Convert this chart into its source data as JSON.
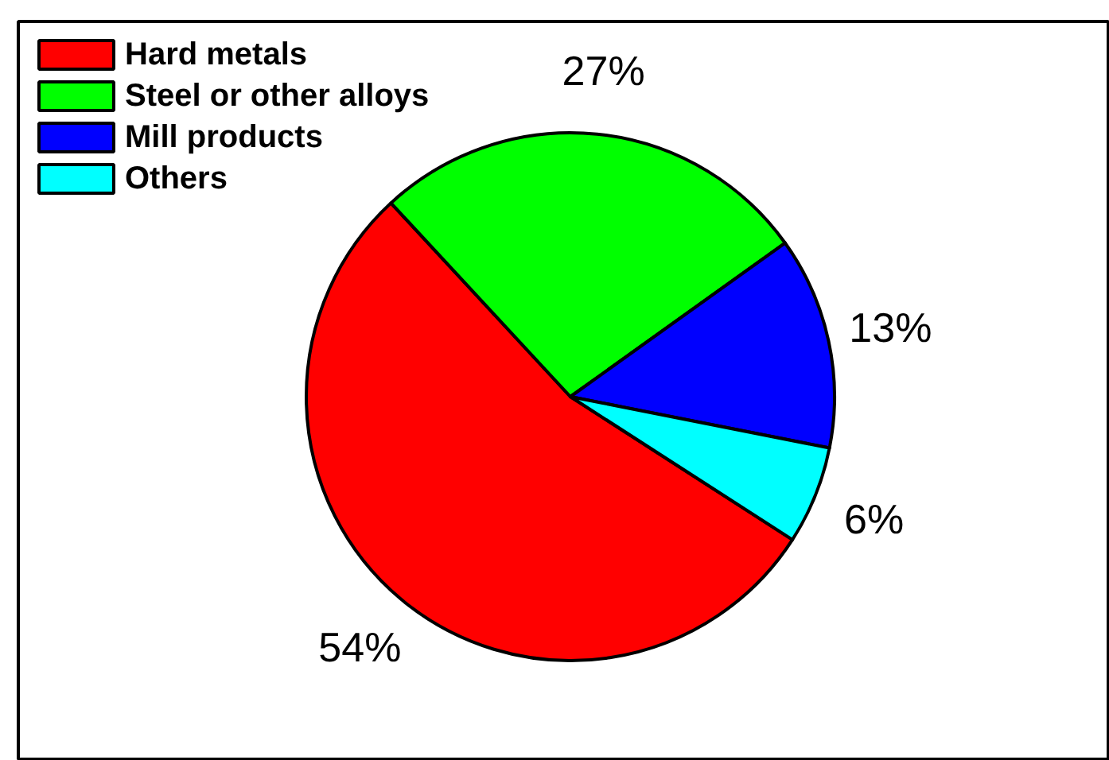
{
  "chart_data": {
    "type": "pie",
    "categories": [
      "Hard metals",
      "Steel or other alloys",
      "Mill products",
      "Others"
    ],
    "values": [
      54,
      27,
      13,
      6
    ],
    "colors": [
      "#ff0000",
      "#00ff00",
      "#0000ff",
      "#00ffff"
    ],
    "value_labels": [
      "54%",
      "27%",
      "13%",
      "6%"
    ],
    "legend": "top left"
  }
}
